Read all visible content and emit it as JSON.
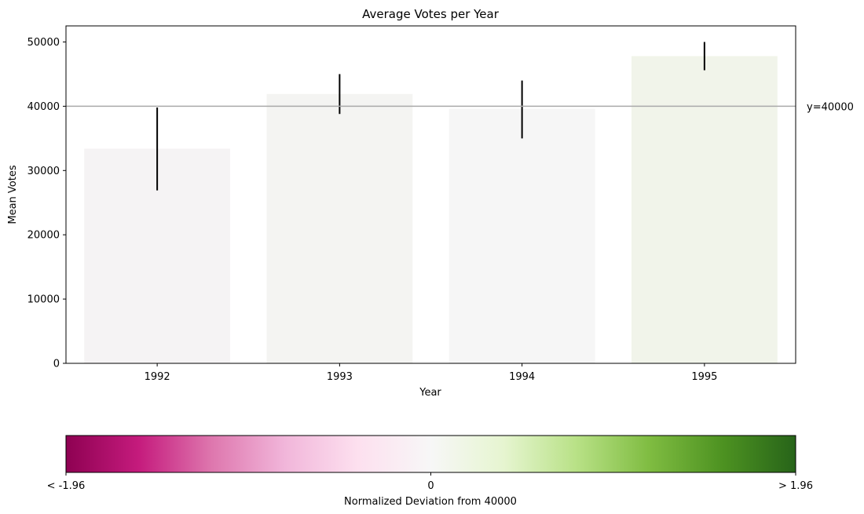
{
  "chart_data": {
    "type": "bar",
    "title": "Average Votes per Year",
    "xlabel": "Year",
    "ylabel": "Mean Votes",
    "categories": [
      "1992",
      "1993",
      "1994",
      "1995"
    ],
    "values": [
      33400,
      41900,
      39600,
      47800
    ],
    "errors": [
      [
        26900,
        39800
      ],
      [
        38800,
        45000
      ],
      [
        35000,
        44000
      ],
      [
        45600,
        50000
      ]
    ],
    "bar_colors": [
      "#f5f3f4",
      "#f4f4f2",
      "#f6f6f6",
      "#f1f4ea"
    ],
    "ylim": [
      0,
      52500
    ],
    "yticks": [
      0,
      10000,
      20000,
      30000,
      40000,
      50000
    ],
    "reference_line": {
      "value": 40000,
      "label": "y=40000",
      "color": "#aaaaaa"
    },
    "grid": false,
    "colorbar": {
      "label": "Normalized Deviation from 40000",
      "ticks": [
        {
          "pos": 0,
          "label": "< -1.96"
        },
        {
          "pos": 0.5,
          "label": "0"
        },
        {
          "pos": 1,
          "label": "> 1.96"
        }
      ],
      "colormap": "PiYG",
      "stops": [
        "#8e0152",
        "#c51b7d",
        "#de77ae",
        "#f1b6da",
        "#fde0ef",
        "#f7f7f7",
        "#e6f5d0",
        "#b8e186",
        "#7fbc41",
        "#4d9221",
        "#276419"
      ]
    }
  }
}
